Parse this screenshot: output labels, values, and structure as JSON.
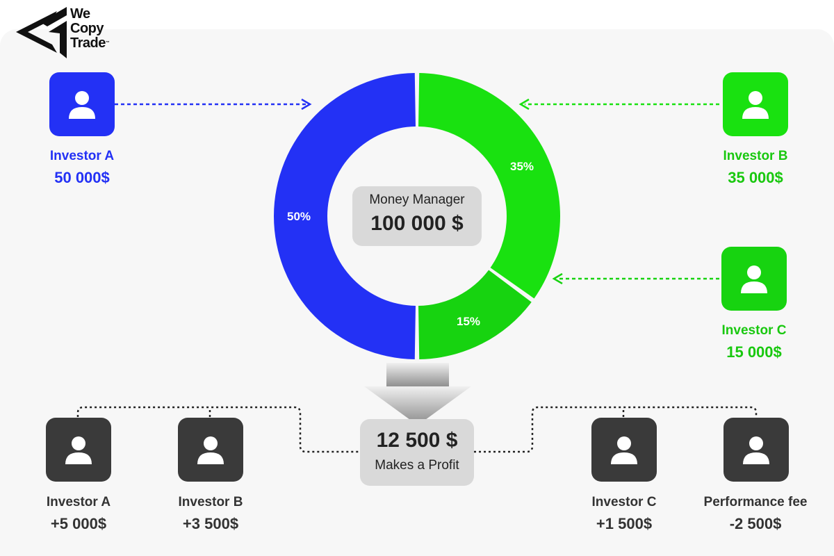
{
  "brand": {
    "line1": "We",
    "line2": "Copy",
    "line3": "Trade",
    "tm": "™"
  },
  "colors": {
    "blue": "#2331f5",
    "green": "#19e110",
    "green_dark": "#17d310",
    "dark": "#3a3a3a",
    "box": "#d9d9d9"
  },
  "top_investors": [
    {
      "name": "Investor A",
      "amount": "50 000$"
    },
    {
      "name": "Investor B",
      "amount": "35 000$"
    },
    {
      "name": "Investor C",
      "amount": "15 000$"
    }
  ],
  "manager": {
    "title": "Money Manager",
    "amount": "100 000 $"
  },
  "profit": {
    "amount": "12 500 $",
    "label": "Makes a Profit"
  },
  "bottom_recipients": [
    {
      "name": "Investor A",
      "amount": "+5 000$"
    },
    {
      "name": "Investor B",
      "amount": "+3 500$"
    },
    {
      "name": "Investor C",
      "amount": "+1 500$"
    },
    {
      "name": "Performance fee",
      "amount": "-2 500$"
    }
  ],
  "chart_data": {
    "type": "pie",
    "categories": [
      "Investor A",
      "Investor B",
      "Investor C"
    ],
    "values": [
      50,
      35,
      15
    ],
    "labels": [
      "50%",
      "35%",
      "15%"
    ],
    "colors": [
      "#2331f5",
      "#19e110",
      "#17d310"
    ]
  }
}
